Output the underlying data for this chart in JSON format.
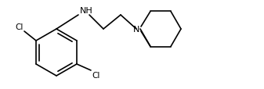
{
  "bg_color": "#ffffff",
  "line_color": "#000000",
  "text_color": "#000000",
  "label_NH": "NH",
  "label_N": "N",
  "label_Cl1": "Cl",
  "label_Cl2": "Cl",
  "figsize": [
    3.37,
    1.15
  ],
  "dpi": 100
}
